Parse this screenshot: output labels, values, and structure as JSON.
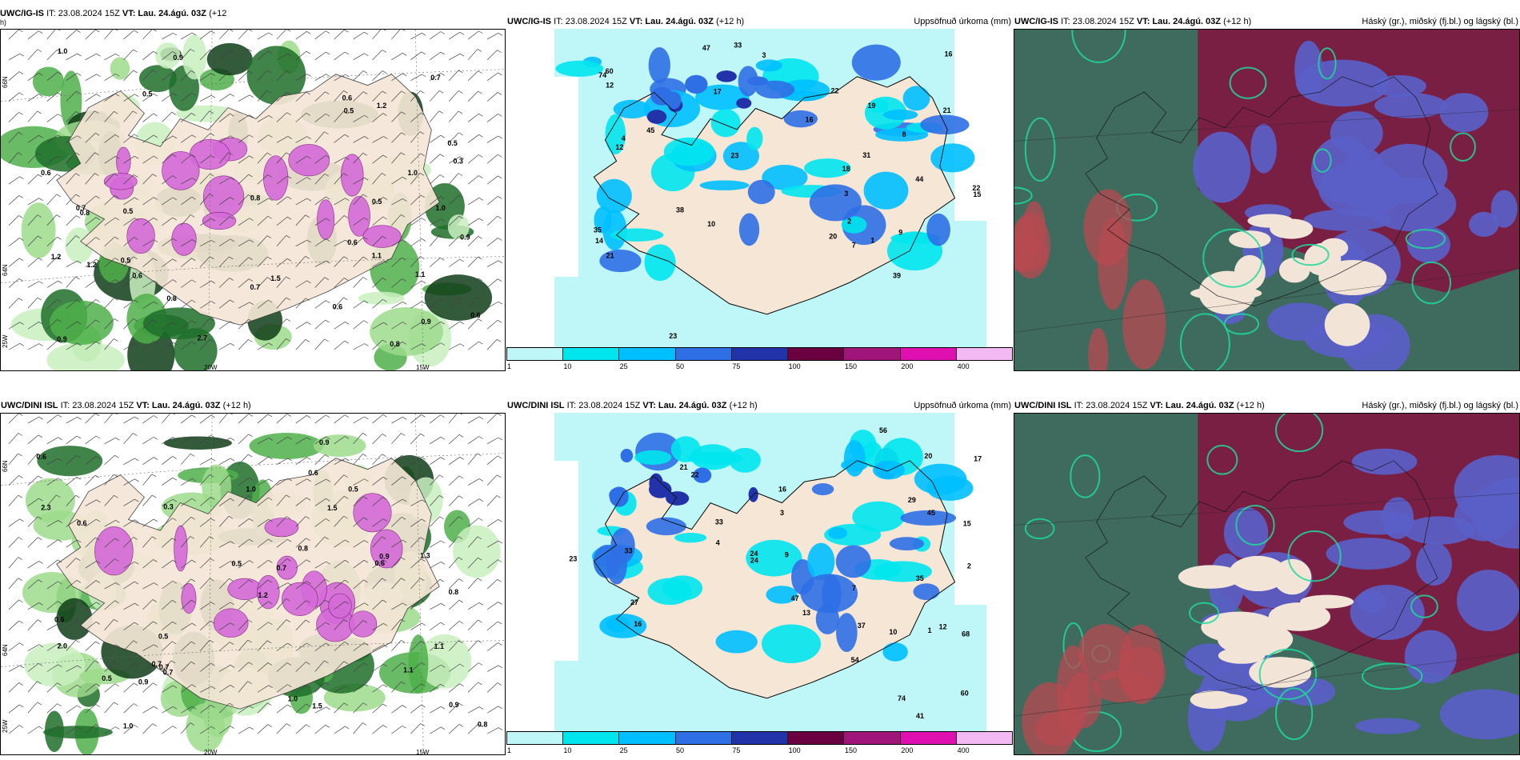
{
  "panels": {
    "ig_wind": {
      "header_prefix": "UWC/IG-IS",
      "header_it": "IT: 23.08.2024 15Z",
      "header_vt": "VT: Lau. 24.ágú. 03Z",
      "header_lead": "(+12",
      "header_lead2": "h)",
      "lat_top": "66N",
      "lat_bottom": "64N",
      "lon_left": "25W",
      "lon_mid": "20W",
      "lon_right": "15W",
      "values": [
        "0.5",
        "0.6",
        "0.7",
        "0.5",
        "0.3",
        "1.0",
        "0.8",
        "0.6",
        "0.5",
        "0.9",
        "1.2",
        "0.6",
        "0.8",
        "0.5",
        "1.1",
        "0.9",
        "1.2",
        "0.6",
        "0.7",
        "0.8",
        "1.0",
        "0.9",
        "2.7",
        "1.5",
        "1.1",
        "0.6",
        "0.8",
        "1.0",
        "1.2",
        "0.7",
        "0.5",
        "0.9",
        "0.6",
        "0.5"
      ]
    },
    "ig_precip": {
      "header_prefix": "UWC/IG-IS",
      "header_it": "IT: 23.08.2024 15Z",
      "header_vt": "VT: Lau. 24.ágú. 03Z",
      "header_lead": "(+12 h)",
      "title_right": "Uppsöfnuð úrkoma (mm)",
      "values": [
        "10",
        "7",
        "14",
        "60",
        "47",
        "74",
        "44",
        "33",
        "20",
        "16",
        "23",
        "35",
        "22",
        "45",
        "31",
        "17",
        "16",
        "21",
        "23",
        "19",
        "15",
        "12",
        "22",
        "38",
        "39",
        "18",
        "21",
        "9",
        "12",
        "8",
        "3",
        "2",
        "1",
        "4",
        "3"
      ]
    },
    "ig_cloud": {
      "header_prefix": "UWC/IG-IS",
      "header_it": "IT: 23.08.2024 15Z",
      "header_vt": "VT: Lau. 24.ágú. 03Z",
      "header_lead": "(+12 h)",
      "title_right": "Háský (gr.), miðský (fj.bl.) og lágský (bl.)"
    },
    "dini_wind": {
      "header_prefix": "UWC/DINI ISL",
      "header_it": "IT: 23.08.2024 15Z",
      "header_vt": "VT: Lau. 24.ágú. 03Z",
      "header_lead": "(+12 h)",
      "lat_top": "66N",
      "lat_bottom": "64N",
      "lon_left": "25W",
      "lon_mid": "20W",
      "lon_right": "15W",
      "values": [
        "0.7",
        "0.9",
        "0.6",
        "0.5",
        "0.8",
        "1.0",
        "1.2",
        "0.7",
        "0.6",
        "0.9",
        "1.5",
        "2.0",
        "0.8",
        "0.3",
        "1.1",
        "0.7",
        "0.6",
        "0.5",
        "1.0",
        "0.9",
        "2.3",
        "1.5",
        "1.0",
        "0.6",
        "0.8",
        "1.3",
        "0.5",
        "0.7",
        "0.5",
        "1.1",
        "0.9",
        "0.6"
      ]
    },
    "dini_precip": {
      "header_prefix": "UWC/DINI ISL",
      "header_it": "IT: 23.08.2024 15Z",
      "header_vt": "VT: Lau. 24.ágú. 03Z",
      "header_lead": "(+12 h)",
      "title_right": "Uppsöfnuð úrkoma (mm)",
      "values": [
        "16",
        "33",
        "47",
        "54",
        "68",
        "74",
        "56",
        "45",
        "29",
        "37",
        "24",
        "60",
        "20",
        "23",
        "16",
        "13",
        "12",
        "35",
        "27",
        "24",
        "21",
        "15",
        "17",
        "33",
        "22",
        "41",
        "10",
        "9",
        "4",
        "3",
        "2",
        "1",
        "7"
      ]
    },
    "dini_cloud": {
      "header_prefix": "UWC/DINI ISL",
      "header_it": "IT: 23.08.2024 15Z",
      "header_vt": "VT: Lau. 24.ágú. 03Z",
      "header_lead": "(+12 h)",
      "title_right": "Háský (gr.), miðský (fj.bl.) og lágský (bl.)"
    }
  },
  "colorbar": {
    "ticks": [
      "1",
      "10",
      "25",
      "50",
      "75",
      "100",
      "150",
      "200",
      "400"
    ],
    "colors": [
      "#bff7f8",
      "#00e5ee",
      "#00bfff",
      "#2f6fe6",
      "#2233aa",
      "#6b0040",
      "#a0157a",
      "#e00fb0",
      "#f2b9f2"
    ]
  }
}
